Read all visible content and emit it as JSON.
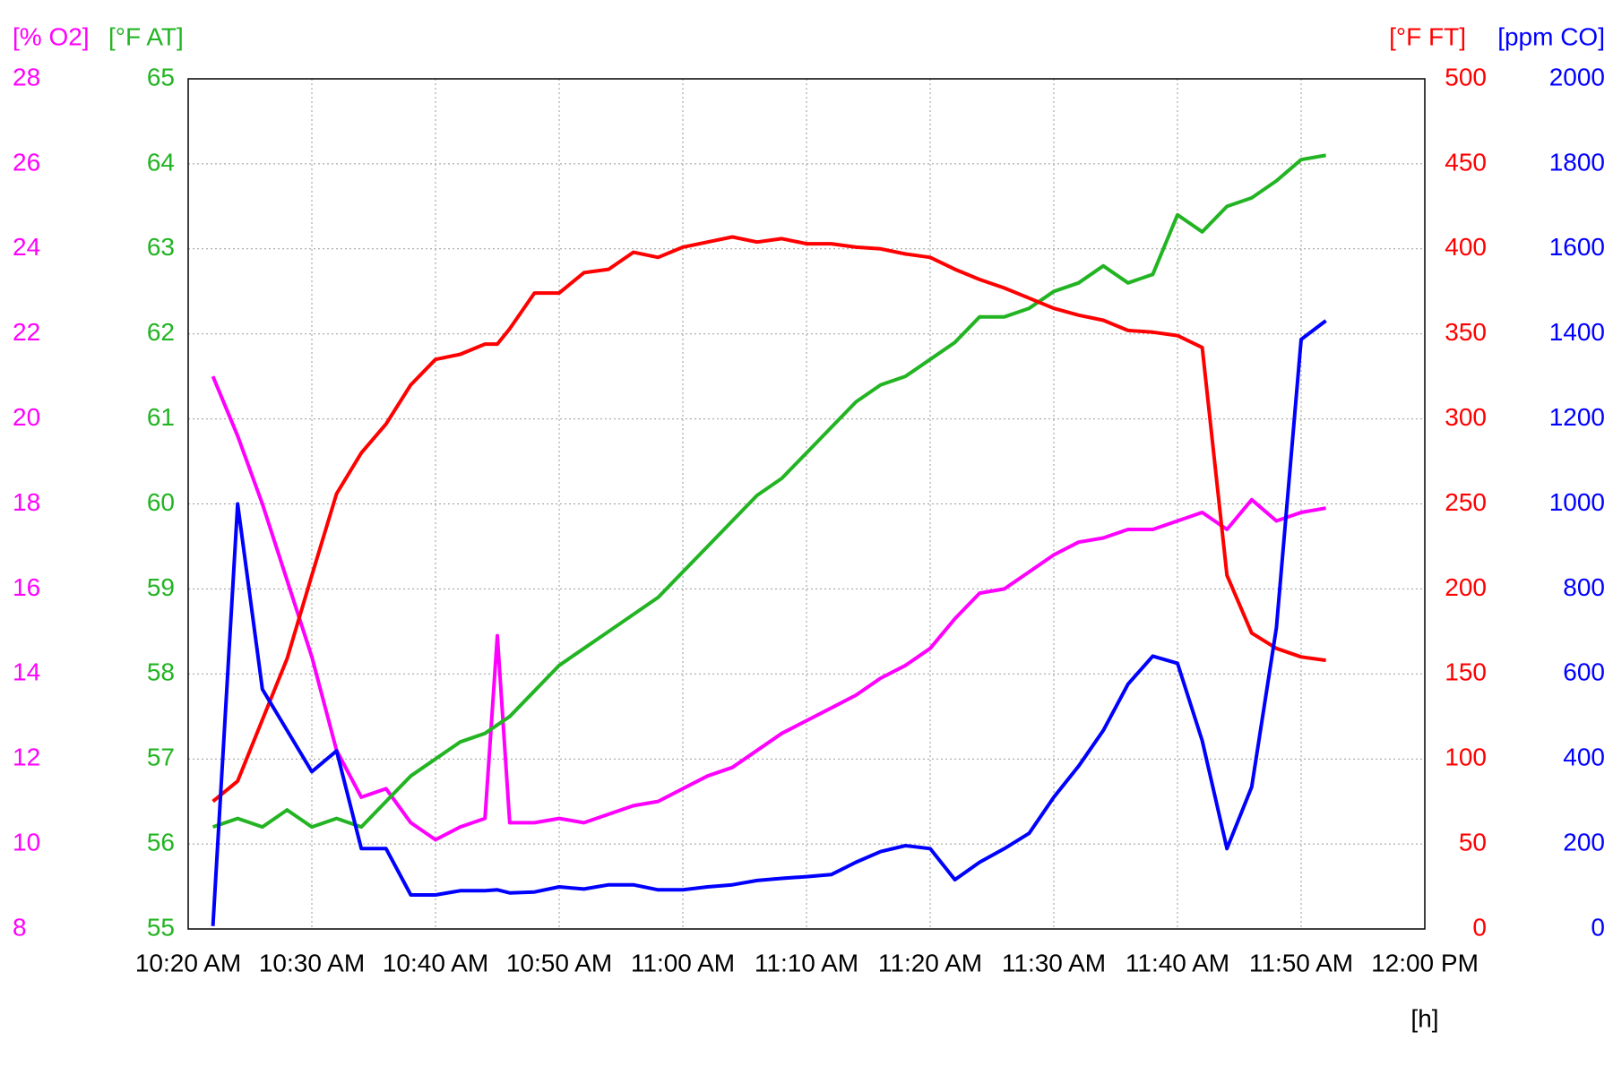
{
  "chart_data": {
    "type": "line",
    "x": [
      "10:22 AM",
      "10:24 AM",
      "10:26 AM",
      "10:28 AM",
      "10:30 AM",
      "10:32 AM",
      "10:34 AM",
      "10:36 AM",
      "10:38 AM",
      "10:40 AM",
      "10:42 AM",
      "10:44 AM",
      "10:45 AM",
      "10:46 AM",
      "10:48 AM",
      "10:50 AM",
      "10:52 AM",
      "10:54 AM",
      "10:56 AM",
      "10:58 AM",
      "11:00 AM",
      "11:02 AM",
      "11:04 AM",
      "11:06 AM",
      "11:08 AM",
      "11:10 AM",
      "11:12 AM",
      "11:14 AM",
      "11:16 AM",
      "11:18 AM",
      "11:20 AM",
      "11:22 AM",
      "11:24 AM",
      "11:26 AM",
      "11:28 AM",
      "11:30 AM",
      "11:32 AM",
      "11:34 AM",
      "11:36 AM",
      "11:38 AM",
      "11:40 AM",
      "11:42 AM",
      "11:44 AM",
      "11:46 AM",
      "11:48 AM",
      "11:50 AM",
      "11:52 AM"
    ],
    "xlim": [
      "10:20 AM",
      "12:00 PM"
    ],
    "xticks": [
      "10:20 AM",
      "10:30 AM",
      "10:40 AM",
      "10:50 AM",
      "11:00 AM",
      "11:10 AM",
      "11:20 AM",
      "11:30 AM",
      "11:40 AM",
      "11:50 AM",
      "12:00 PM"
    ],
    "xlabel": "[h]",
    "grid": true,
    "series": [
      {
        "name": "[% O2]",
        "color": "#ff00ff",
        "side": "left",
        "ylim": [
          8,
          28
        ],
        "yticks": [
          8,
          10,
          12,
          14,
          16,
          18,
          20,
          22,
          24,
          26,
          28
        ],
        "values": [
          21.0,
          19.6,
          18.0,
          16.2,
          14.4,
          12.2,
          11.1,
          11.3,
          10.5,
          10.1,
          10.4,
          10.6,
          14.9,
          10.5,
          10.5,
          10.6,
          10.5,
          10.7,
          10.9,
          11.0,
          11.3,
          11.6,
          11.8,
          12.2,
          12.6,
          12.9,
          13.2,
          13.5,
          13.9,
          14.2,
          14.6,
          15.3,
          15.9,
          16.0,
          16.4,
          16.8,
          17.1,
          17.2,
          17.4,
          17.4,
          17.6,
          17.8,
          17.4,
          18.1,
          17.6,
          17.8,
          17.9
        ]
      },
      {
        "name": "[°F AT]",
        "color": "#22b422",
        "side": "left",
        "ylim": [
          55,
          65
        ],
        "yticks": [
          55,
          56,
          57,
          58,
          59,
          60,
          61,
          62,
          63,
          64,
          65
        ],
        "values": [
          56.2,
          56.3,
          56.2,
          56.4,
          56.2,
          56.3,
          56.2,
          56.5,
          56.8,
          57.0,
          57.2,
          57.3,
          57.4,
          57.5,
          57.8,
          58.1,
          58.3,
          58.5,
          58.7,
          58.9,
          59.2,
          59.5,
          59.8,
          60.1,
          60.3,
          60.6,
          60.9,
          61.2,
          61.4,
          61.5,
          61.7,
          61.9,
          62.2,
          62.2,
          62.3,
          62.5,
          62.6,
          62.8,
          62.6,
          62.7,
          63.4,
          63.2,
          63.5,
          63.6,
          63.8,
          64.05,
          64.1
        ]
      },
      {
        "name": "[°F FT]",
        "color": "#ff0000",
        "side": "right",
        "ylim": [
          0,
          500
        ],
        "yticks": [
          0,
          50,
          100,
          150,
          200,
          250,
          300,
          350,
          400,
          450,
          500
        ],
        "values": [
          75,
          87,
          123,
          159,
          208,
          256,
          280,
          297,
          320,
          335,
          338,
          344,
          344,
          353,
          374,
          374,
          386,
          388,
          398,
          395,
          401,
          404,
          407,
          404,
          406,
          403,
          403,
          401,
          400,
          397,
          395,
          388,
          382,
          377,
          371,
          365,
          361,
          358,
          352,
          351,
          349,
          342,
          208,
          174,
          165,
          160,
          158
        ]
      },
      {
        "name": "[ppm CO]",
        "color": "#0000ff",
        "side": "right",
        "ylim": [
          0,
          2000
        ],
        "yticks": [
          0,
          200,
          400,
          600,
          800,
          1000,
          1200,
          1400,
          1600,
          1800,
          2000
        ],
        "values": [
          7,
          1000,
          564,
          467,
          370,
          419,
          189,
          189,
          80,
          80,
          90,
          90,
          92,
          85,
          87,
          99,
          94,
          104,
          104,
          92,
          92,
          99,
          104,
          114,
          119,
          123,
          128,
          157,
          182,
          196,
          189,
          116,
          157,
          189,
          225,
          310,
          383,
          467,
          576,
          642,
          625,
          443,
          189,
          334,
          709,
          1387,
          1431
        ]
      }
    ]
  }
}
